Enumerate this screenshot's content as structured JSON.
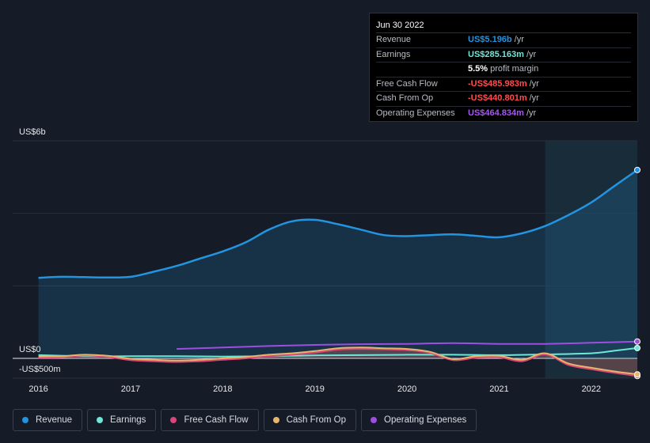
{
  "tooltip": {
    "date": "Jun 30 2022",
    "rows": [
      {
        "label": "Revenue",
        "value": "US$5.196b",
        "unit": "/yr",
        "color": "#2394df"
      },
      {
        "label": "Earnings",
        "value": "US$285.163m",
        "unit": "/yr",
        "color": "#6ee7d7"
      },
      {
        "label": "",
        "value": "5.5%",
        "unit": "profit margin",
        "color": "#ffffff"
      },
      {
        "label": "Free Cash Flow",
        "value": "-US$485.983m",
        "unit": "/yr",
        "color": "#ff4d4f"
      },
      {
        "label": "Cash From Op",
        "value": "-US$440.801m",
        "unit": "/yr",
        "color": "#ff4d4f"
      },
      {
        "label": "Operating Expenses",
        "value": "US$464.834m",
        "unit": "/yr",
        "color": "#a855f7"
      }
    ]
  },
  "legend": [
    {
      "label": "Revenue",
      "color": "#2394df"
    },
    {
      "label": "Earnings",
      "color": "#6ee7d7"
    },
    {
      "label": "Free Cash Flow",
      "color": "#d9467a"
    },
    {
      "label": "Cash From Op",
      "color": "#e7b56b"
    },
    {
      "label": "Operating Expenses",
      "color": "#9d4ee0"
    }
  ],
  "chart_data": {
    "type": "area",
    "y_labels": {
      "top": "US$6b",
      "zero": "US$0",
      "bottom": "-US$500m"
    },
    "ylim": [
      -500,
      5600
    ],
    "x_tick_labels": [
      "2016",
      "2017",
      "2018",
      "2019",
      "2020",
      "2021",
      "2022"
    ],
    "x_tick_values": [
      2016,
      2017,
      2018,
      2019,
      2020,
      2021,
      2022
    ],
    "xlim": [
      2015.72,
      2022.5
    ],
    "forecast_start": 2021.5,
    "series": [
      {
        "name": "Revenue",
        "color": "#2394df",
        "fill": true,
        "x": [
          2016.0,
          2016.25,
          2016.5,
          2016.75,
          2017.0,
          2017.25,
          2017.5,
          2017.75,
          2018.0,
          2018.25,
          2018.5,
          2018.75,
          2019.0,
          2019.25,
          2019.5,
          2019.75,
          2020.0,
          2020.25,
          2020.5,
          2020.75,
          2021.0,
          2021.25,
          2021.5,
          2021.75,
          2022.0,
          2022.25,
          2022.5
        ],
        "y": [
          2220,
          2250,
          2240,
          2230,
          2250,
          2390,
          2550,
          2750,
          2950,
          3200,
          3550,
          3780,
          3820,
          3700,
          3550,
          3400,
          3370,
          3400,
          3420,
          3380,
          3340,
          3450,
          3650,
          3950,
          4300,
          4750,
          5196
        ]
      },
      {
        "name": "Earnings",
        "color": "#6ee7d7",
        "fill": false,
        "x": [
          2016.0,
          2016.5,
          2017.0,
          2017.5,
          2018.0,
          2018.5,
          2019.0,
          2019.5,
          2020.0,
          2020.5,
          2021.0,
          2021.5,
          2022.0,
          2022.25,
          2022.5
        ],
        "y": [
          90,
          60,
          60,
          60,
          50,
          60,
          80,
          90,
          100,
          100,
          90,
          110,
          140,
          210,
          285
        ]
      },
      {
        "name": "Free Cash Flow",
        "color": "#d9467a",
        "fill": false,
        "x": [
          2016.0,
          2016.25,
          2016.5,
          2016.75,
          2017.0,
          2017.25,
          2017.5,
          2017.75,
          2018.0,
          2018.25,
          2018.5,
          2018.75,
          2019.0,
          2019.25,
          2019.5,
          2019.75,
          2020.0,
          2020.25,
          2020.5,
          2020.75,
          2021.0,
          2021.25,
          2021.5,
          2021.75,
          2022.0,
          2022.25,
          2022.5
        ],
        "y": [
          20,
          30,
          80,
          40,
          -50,
          -80,
          -100,
          -80,
          -40,
          0,
          60,
          100,
          160,
          240,
          260,
          250,
          230,
          150,
          -50,
          20,
          30,
          -80,
          110,
          -180,
          -300,
          -400,
          -486
        ]
      },
      {
        "name": "Cash From Op",
        "color": "#e7b56b",
        "fill": false,
        "x": [
          2016.0,
          2016.25,
          2016.5,
          2016.75,
          2017.0,
          2017.25,
          2017.5,
          2017.75,
          2018.0,
          2018.25,
          2018.5,
          2018.75,
          2019.0,
          2019.25,
          2019.5,
          2019.75,
          2020.0,
          2020.25,
          2020.5,
          2020.75,
          2021.0,
          2021.25,
          2021.5,
          2021.75,
          2022.0,
          2022.25,
          2022.5
        ],
        "y": [
          50,
          60,
          100,
          70,
          -10,
          -40,
          -60,
          -40,
          0,
          40,
          100,
          140,
          200,
          280,
          300,
          280,
          260,
          180,
          -20,
          60,
          70,
          -40,
          140,
          -140,
          -260,
          -360,
          -441
        ]
      },
      {
        "name": "Operating Expenses",
        "color": "#9d4ee0",
        "fill": false,
        "x": [
          2017.5,
          2018.0,
          2018.5,
          2019.0,
          2019.5,
          2020.0,
          2020.5,
          2021.0,
          2021.5,
          2022.0,
          2022.5
        ],
        "y": [
          260,
          300,
          340,
          370,
          390,
          400,
          420,
          400,
          400,
          430,
          465
        ]
      }
    ]
  }
}
